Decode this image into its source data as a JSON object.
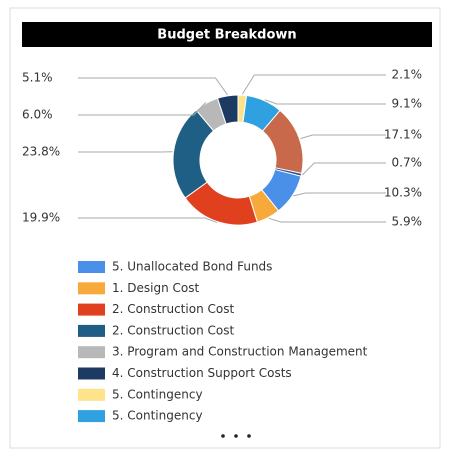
{
  "chart_data": {
    "type": "donut",
    "title": "Budget Breakdown",
    "categories": [
      "5. Unallocated Bond Funds",
      "1. Design Cost",
      "2. Construction Cost",
      "2. Construction Cost",
      "3. Program and Construction Management",
      "4. Construction Support Costs",
      "5. Contingency",
      "5. Contingency",
      null,
      null
    ],
    "values": [
      10.3,
      5.9,
      19.9,
      23.8,
      6.0,
      5.1,
      2.1,
      9.1,
      17.1,
      0.7
    ],
    "value_labels": [
      "10.3%",
      "5.9%",
      "19.9%",
      "23.8%",
      "6.0%",
      "5.1%",
      "2.1%",
      "9.1%",
      "17.1%",
      "0.7%"
    ],
    "colors": [
      "#4a8fe8",
      "#f7a93b",
      "#e0401e",
      "#1f5f86",
      "#b8b8b8",
      "#1c3a62",
      "#fde38a",
      "#2fa0e0",
      "#c8694c",
      "#2a4d8f"
    ],
    "legend": "bottom"
  }
}
